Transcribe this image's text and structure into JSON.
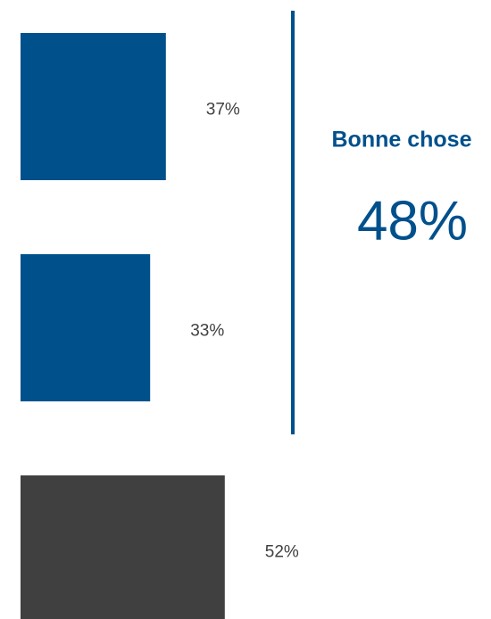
{
  "chart_data": {
    "type": "bar",
    "orientation": "horizontal",
    "values": [
      37,
      33,
      52
    ],
    "value_labels": [
      "37%",
      "33%",
      "52%"
    ],
    "colors": [
      "#00508c",
      "#00508c",
      "#404040"
    ],
    "annotation": {
      "title": "Bonne chose",
      "text": "48%",
      "color": "#00508c"
    }
  }
}
